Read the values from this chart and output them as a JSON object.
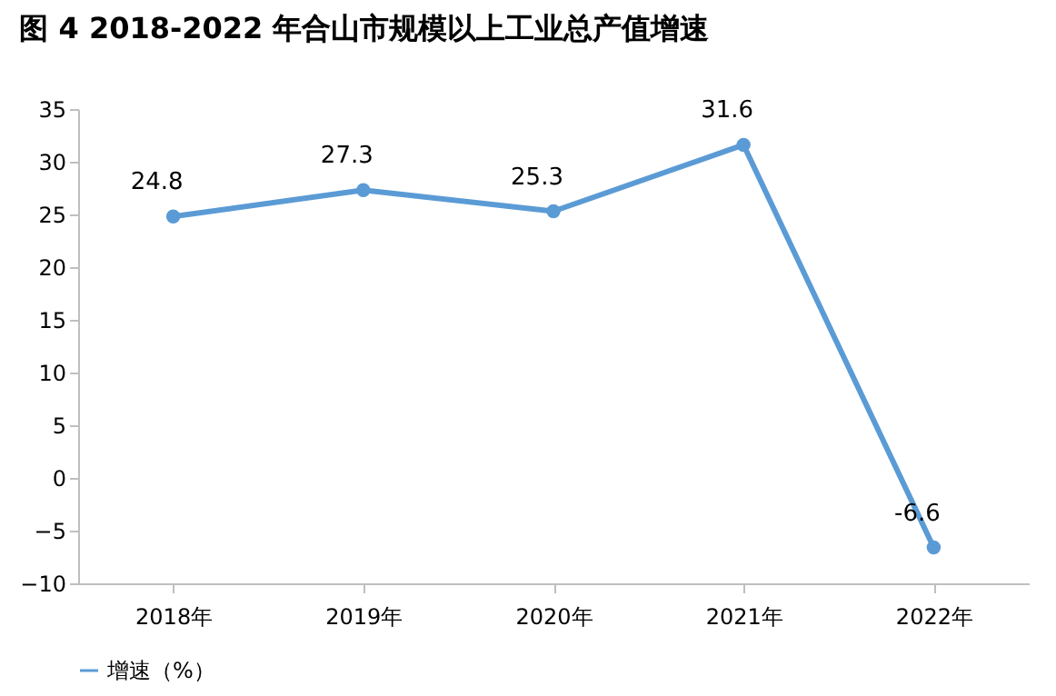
{
  "chart_data": {
    "type": "line",
    "title": "图 4    2018-2022 年合山市规模以上工业总产值增速",
    "categories": [
      "2018年",
      "2019年",
      "2020年",
      "2021年",
      "2022年"
    ],
    "series": [
      {
        "name": "增速（%）",
        "color": "#5b9bd5",
        "values": [
          24.8,
          27.3,
          25.3,
          31.6,
          -6.6
        ]
      }
    ],
    "ylim": [
      -10,
      35
    ],
    "yticks": [
      -10,
      -5,
      0,
      5,
      10,
      15,
      20,
      25,
      30,
      35
    ],
    "grid": false,
    "legend": "bottom",
    "marker": "circle",
    "line_style": "solid",
    "data_labels": true
  }
}
